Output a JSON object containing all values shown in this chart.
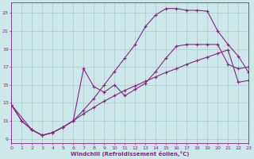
{
  "title": "",
  "xlabel": "Windchill (Refroidissement éolien,°C)",
  "bg_color": "#cce8e8",
  "grid_color": "#aacccc",
  "line_color": "#882288",
  "xlim": [
    0,
    23
  ],
  "ylim": [
    8.5,
    24.2
  ],
  "xticks": [
    0,
    1,
    2,
    3,
    4,
    5,
    6,
    7,
    8,
    9,
    10,
    11,
    12,
    13,
    14,
    15,
    16,
    17,
    18,
    19,
    20,
    21,
    22,
    23
  ],
  "yticks": [
    9,
    11,
    13,
    15,
    17,
    19,
    21,
    23
  ],
  "curve1_x": [
    0,
    1,
    2,
    3,
    4,
    5,
    6,
    7,
    8,
    9,
    10,
    11,
    12,
    13,
    14,
    15,
    16,
    17,
    18,
    19,
    20,
    21,
    22,
    23
  ],
  "curve1_y": [
    12.8,
    11.0,
    10.0,
    9.4,
    9.7,
    10.3,
    11.0,
    12.2,
    13.5,
    15.0,
    16.5,
    18.0,
    19.5,
    21.5,
    22.8,
    23.5,
    23.5,
    23.3,
    23.3,
    23.2,
    21.0,
    19.5,
    18.2,
    16.4
  ],
  "curve2_x": [
    0,
    2,
    3,
    4,
    5,
    6,
    7,
    8,
    9,
    10,
    11,
    12,
    13,
    14,
    15,
    16,
    17,
    18,
    19,
    20,
    21,
    22,
    23
  ],
  "curve2_y": [
    12.8,
    10.0,
    9.4,
    9.7,
    10.3,
    11.0,
    11.8,
    12.5,
    13.2,
    13.8,
    14.4,
    14.9,
    15.4,
    15.9,
    16.4,
    16.8,
    17.3,
    17.7,
    18.1,
    18.5,
    18.9,
    15.3,
    15.5
  ],
  "curve3_x": [
    0,
    1,
    2,
    3,
    4,
    5,
    6,
    7,
    8,
    9,
    10,
    11,
    12,
    13,
    14,
    15,
    16,
    17,
    18,
    19,
    20,
    21,
    22,
    23
  ],
  "curve3_y": [
    12.8,
    11.0,
    10.0,
    9.4,
    9.7,
    10.3,
    11.0,
    16.8,
    14.8,
    14.2,
    15.0,
    13.8,
    14.5,
    15.2,
    16.5,
    18.0,
    19.3,
    19.5,
    19.5,
    19.5,
    19.5,
    17.3,
    16.8,
    17.0
  ]
}
